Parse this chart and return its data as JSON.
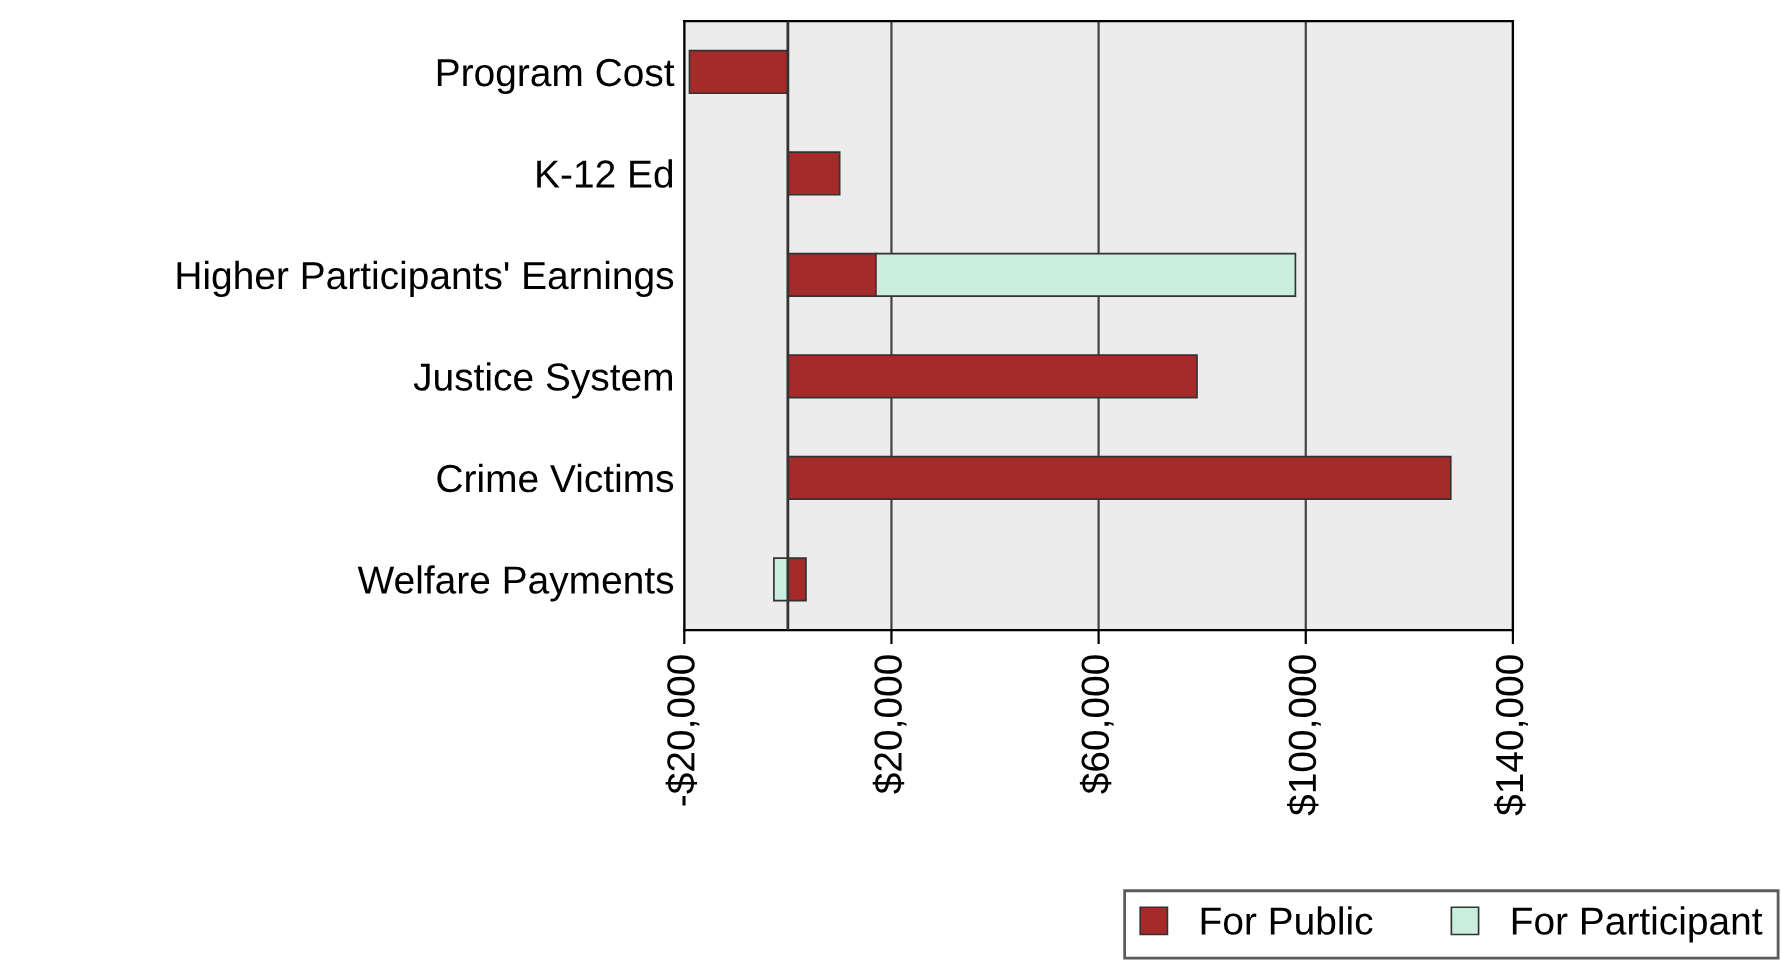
{
  "chart_data": {
    "type": "bar",
    "orientation": "horizontal",
    "stacked": true,
    "categories": [
      "Program Cost",
      "K-12 Ed",
      "Higher Participants' Earnings",
      "Justice System",
      "Crime Victims",
      "Welfare Payments"
    ],
    "series": [
      {
        "name": "For Public",
        "color": "#a52a2a",
        "values": [
          -19000,
          10000,
          17000,
          79000,
          128000,
          3500
        ]
      },
      {
        "name": "For Participant",
        "color": "#c8eedd",
        "values": [
          null,
          null,
          81000,
          null,
          null,
          -2700
        ]
      }
    ],
    "xlim": [
      -20000,
      140000
    ],
    "xticks": [
      {
        "value": -20000,
        "label": "-$20,000"
      },
      {
        "value": 20000,
        "label": "$20,000"
      },
      {
        "value": 60000,
        "label": "$60,000"
      },
      {
        "value": 100000,
        "label": "$100,000"
      },
      {
        "value": 140000,
        "label": "$140,000"
      }
    ],
    "grid": "x",
    "legend": "bottom"
  }
}
